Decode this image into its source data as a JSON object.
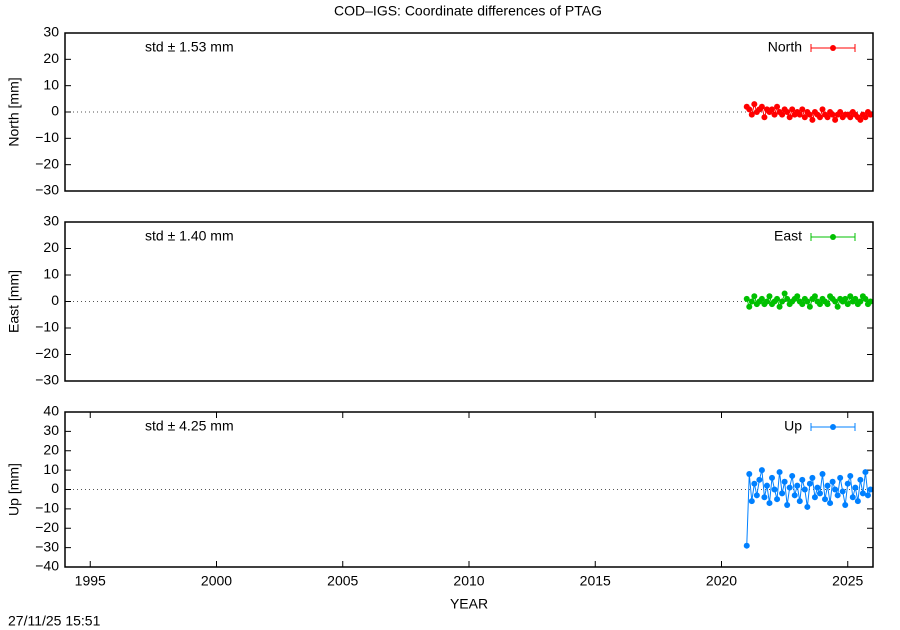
{
  "title": "COD–IGS: Coordinate differences of PTAG",
  "timestamp": "27/11/25 15:51",
  "chart_data": [
    {
      "type": "line",
      "ylabel": "North [mm]",
      "annotation": "std ± 1.53 mm",
      "xlim": [
        1994,
        2026
      ],
      "ylim": [
        -30,
        30
      ],
      "yticks": [
        {
          "value": -30,
          "label": "−30"
        },
        {
          "value": -20,
          "label": "−20"
        },
        {
          "value": -10,
          "label": "−10"
        },
        0,
        10,
        20,
        30
      ],
      "x": [
        2021.0,
        2021.1,
        2021.2,
        2021.3,
        2021.4,
        2021.5,
        2021.6,
        2021.7,
        2021.8,
        2021.9,
        2022.0,
        2022.1,
        2022.2,
        2022.3,
        2022.4,
        2022.5,
        2022.6,
        2022.7,
        2022.8,
        2022.9,
        2023.0,
        2023.1,
        2023.2,
        2023.3,
        2023.4,
        2023.5,
        2023.6,
        2023.7,
        2023.8,
        2023.9,
        2024.0,
        2024.1,
        2024.2,
        2024.3,
        2024.4,
        2024.5,
        2024.6,
        2024.7,
        2024.8,
        2024.9,
        2025.0,
        2025.1,
        2025.2,
        2025.3,
        2025.4,
        2025.5,
        2025.6,
        2025.7,
        2025.8,
        2025.9
      ],
      "series": [
        {
          "name": "North",
          "color": "#ff0000",
          "values": [
            2,
            1,
            -1,
            3,
            0,
            1,
            2,
            -2,
            1,
            0,
            1,
            -1,
            2,
            0,
            -1,
            1,
            0,
            -2,
            1,
            -1,
            0,
            -1,
            1,
            -2,
            0,
            -1,
            -3,
            0,
            -1,
            -2,
            1,
            -1,
            -2,
            0,
            -1,
            -3,
            -1,
            0,
            -2,
            -1,
            -1,
            -2,
            0,
            -1,
            -2,
            -3,
            -1,
            -2,
            0,
            -1
          ]
        }
      ]
    },
    {
      "type": "line",
      "ylabel": "East [mm]",
      "annotation": "std ± 1.40 mm",
      "xlim": [
        1994,
        2026
      ],
      "ylim": [
        -30,
        30
      ],
      "yticks": [
        {
          "value": -30,
          "label": "−30"
        },
        {
          "value": -20,
          "label": "−20"
        },
        {
          "value": -10,
          "label": "−10"
        },
        0,
        10,
        20,
        30
      ],
      "x": [
        2021.0,
        2021.1,
        2021.2,
        2021.3,
        2021.4,
        2021.5,
        2021.6,
        2021.7,
        2021.8,
        2021.9,
        2022.0,
        2022.1,
        2022.2,
        2022.3,
        2022.4,
        2022.5,
        2022.6,
        2022.7,
        2022.8,
        2022.9,
        2023.0,
        2023.1,
        2023.2,
        2023.3,
        2023.4,
        2023.5,
        2023.6,
        2023.7,
        2023.8,
        2023.9,
        2024.0,
        2024.1,
        2024.2,
        2024.3,
        2024.4,
        2024.5,
        2024.6,
        2024.7,
        2024.8,
        2024.9,
        2025.0,
        2025.1,
        2025.2,
        2025.3,
        2025.4,
        2025.5,
        2025.6,
        2025.7,
        2025.8,
        2025.9
      ],
      "series": [
        {
          "name": "East",
          "color": "#00c000",
          "values": [
            1,
            -2,
            0,
            2,
            -1,
            0,
            1,
            -1,
            0,
            2,
            -1,
            0,
            1,
            -2,
            0,
            3,
            1,
            -1,
            0,
            1,
            2,
            0,
            -1,
            1,
            0,
            -2,
            1,
            2,
            0,
            -1,
            1,
            0,
            -1,
            2,
            1,
            0,
            -2,
            1,
            0,
            1,
            -1,
            2,
            0,
            1,
            -1,
            0,
            2,
            1,
            -1,
            0
          ]
        }
      ]
    },
    {
      "type": "line",
      "ylabel": "Up [mm]",
      "annotation": "std ± 4.25 mm",
      "xlabel": "YEAR",
      "xlim": [
        1994,
        2026
      ],
      "ylim": [
        -40,
        40
      ],
      "xticks": [
        1995,
        2000,
        2005,
        2010,
        2015,
        2020,
        2025
      ],
      "yticks": [
        {
          "value": -40,
          "label": "−40"
        },
        {
          "value": -30,
          "label": "−30"
        },
        {
          "value": -20,
          "label": "−20"
        },
        {
          "value": -10,
          "label": "−10"
        },
        0,
        10,
        20,
        30,
        40
      ],
      "x": [
        2021.0,
        2021.1,
        2021.2,
        2021.3,
        2021.4,
        2021.5,
        2021.6,
        2021.7,
        2021.8,
        2021.9,
        2022.0,
        2022.1,
        2022.2,
        2022.3,
        2022.4,
        2022.5,
        2022.6,
        2022.7,
        2022.8,
        2022.9,
        2023.0,
        2023.1,
        2023.2,
        2023.3,
        2023.4,
        2023.5,
        2023.6,
        2023.7,
        2023.8,
        2023.9,
        2024.0,
        2024.1,
        2024.2,
        2024.3,
        2024.4,
        2024.5,
        2024.6,
        2024.7,
        2024.8,
        2024.9,
        2025.0,
        2025.1,
        2025.2,
        2025.3,
        2025.4,
        2025.5,
        2025.6,
        2025.7,
        2025.8,
        2025.9
      ],
      "series": [
        {
          "name": "Up",
          "color": "#0080ff",
          "values": [
            -29,
            8,
            -6,
            3,
            -3,
            5,
            10,
            -4,
            2,
            -7,
            6,
            0,
            -5,
            9,
            -2,
            4,
            -8,
            1,
            7,
            -3,
            2,
            -6,
            5,
            0,
            -9,
            3,
            6,
            -4,
            1,
            -2,
            8,
            -5,
            2,
            -7,
            4,
            0,
            -3,
            6,
            -1,
            -8,
            3,
            7,
            -4,
            1,
            -6,
            5,
            -2,
            9,
            -3,
            0
          ]
        }
      ]
    }
  ]
}
